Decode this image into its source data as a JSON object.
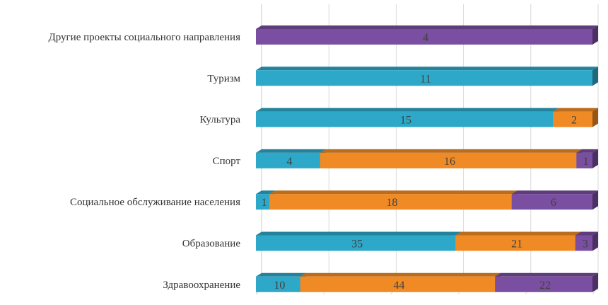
{
  "chart_data": {
    "type": "bar",
    "orientation": "horizontal",
    "stacked": "percent",
    "style": "3d",
    "grid": true,
    "legend": "none",
    "categories": [
      "Другие проекты социального направления",
      "Туризм",
      "Культура",
      "Спорт",
      "Социальное обслуживание населения",
      "Образование",
      "Здравоохранение"
    ],
    "series": [
      {
        "color": "#2ea8c8",
        "values": [
          0,
          11,
          15,
          4,
          1,
          35,
          10
        ]
      },
      {
        "color": "#f08a24",
        "values": [
          0,
          0,
          2,
          16,
          18,
          21,
          44
        ]
      },
      {
        "color": "#7a4ea0",
        "values": [
          4,
          0,
          0,
          1,
          6,
          3,
          22
        ]
      }
    ]
  }
}
